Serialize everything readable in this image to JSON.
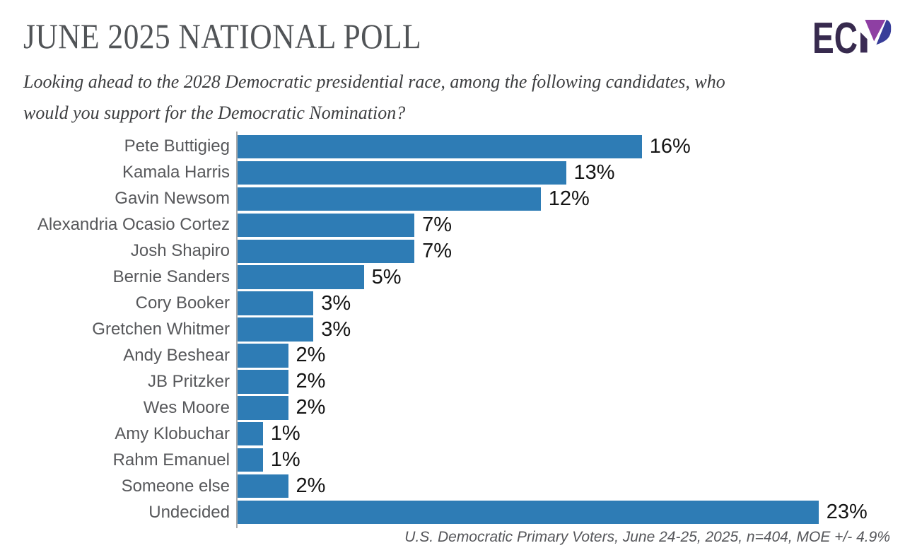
{
  "header": {
    "title": "JUNE 2025 NATIONAL POLL",
    "subtitle_line1": "Looking ahead to the 2028 Democratic presidential race, among the following candidates, who",
    "subtitle_line2": "would you support for the Democratic Nomination?",
    "logo_text": "EC",
    "logo_colors": {
      "letters": "#372a4e",
      "stem": "#3b2b54",
      "purple": "#8e3fa3",
      "indigo": "#383d99"
    }
  },
  "chart_data": {
    "type": "bar",
    "orientation": "horizontal",
    "title": "JUNE 2025 NATIONAL POLL",
    "question": "Looking ahead to the 2028 Democratic presidential race, among the following candidates, who would you support for the Democratic Nomination?",
    "categories": [
      "Pete Buttigieg",
      "Kamala Harris",
      "Gavin Newsom",
      "Alexandria Ocasio Cortez",
      "Josh Shapiro",
      "Bernie Sanders",
      "Cory Booker",
      "Gretchen Whitmer",
      "Andy Beshear",
      "JB Pritzker",
      "Wes Moore",
      "Amy Klobuchar",
      "Rahm Emanuel",
      "Someone else",
      "Undecided"
    ],
    "values": [
      16,
      13,
      12,
      7,
      7,
      5,
      3,
      3,
      2,
      2,
      2,
      1,
      1,
      2,
      23
    ],
    "value_labels": [
      "16%",
      "13%",
      "12%",
      "7%",
      "7%",
      "5%",
      "3%",
      "3%",
      "2%",
      "2%",
      "2%",
      "1%",
      "1%",
      "2%",
      "23%"
    ],
    "value_suffix": "%",
    "xlim": [
      0,
      25
    ],
    "grid": false,
    "legend": false,
    "bar_color": "#2e7cb5",
    "footnote": "U.S. Democratic Primary Voters, June 24-25, 2025, n=404, MOE +/- 4.9%"
  }
}
